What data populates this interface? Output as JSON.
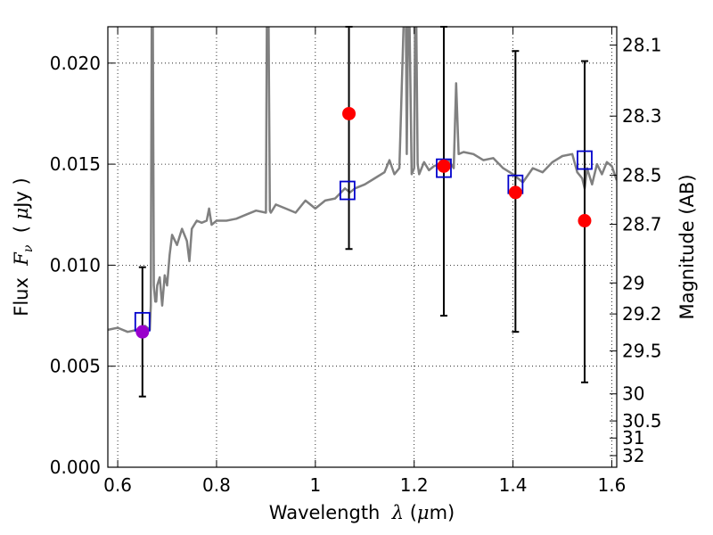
{
  "chart_data": {
    "type": "scatter",
    "xlabel": {
      "prefix": "Wavelength  ",
      "symbol": "λ",
      "suffix": " (",
      "unit_symbol": "μ",
      "unit_rest": "m)"
    },
    "ylabel": {
      "prefix": "Flux  ",
      "symbol": "F",
      "subscript": "ν",
      "suffix": "  ( ",
      "unit_symbol": "μ",
      "unit_rest": "Jy )"
    },
    "y2label": "Magnitude (AB)",
    "xlim": [
      0.58,
      1.61
    ],
    "ylim": [
      0.0,
      0.0218
    ],
    "xticks": [
      0.6,
      0.8,
      1.0,
      1.2,
      1.4,
      1.6
    ],
    "xtick_labels": [
      "0.6",
      "0.8",
      "1",
      "1.2",
      "1.4",
      "1.6"
    ],
    "yticks": [
      0.0,
      0.005,
      0.01,
      0.015,
      0.02
    ],
    "ytick_labels": [
      "0.000",
      "0.005",
      "0.010",
      "0.015",
      "0.020"
    ],
    "magnitude_ticks": [
      "28.1",
      "28.3",
      "28.5",
      "28.7",
      "29",
      "29.2",
      "29.5",
      "30",
      "30.5",
      "31",
      "32"
    ],
    "grid": true,
    "colors": {
      "spectrum": "#808080",
      "observed": "#ff0000",
      "first_observed": "#9900cc",
      "model": "#0000cc",
      "errorbar": "#000000"
    },
    "series": [
      {
        "marker": "open-square",
        "x": [
          0.65,
          1.065,
          1.26,
          1.405,
          1.545
        ],
        "y": [
          0.0072,
          0.0137,
          0.0148,
          0.014,
          0.0152
        ]
      },
      {
        "marker": "filled-circle",
        "x": [
          0.65,
          1.068,
          1.26,
          1.405,
          1.545
        ],
        "y": [
          0.0067,
          0.0175,
          0.0149,
          0.0136,
          0.0122
        ],
        "yerr_low": [
          0.0035,
          0.0108,
          0.0075,
          0.0067,
          0.0042
        ],
        "yerr_high": [
          0.0099,
          0.0218,
          0.0218,
          0.0206,
          0.0201
        ]
      }
    ],
    "spectrum": {
      "x": [
        0.58,
        0.6,
        0.62,
        0.64,
        0.655,
        0.665,
        0.667,
        0.669,
        0.671,
        0.673,
        0.676,
        0.678,
        0.68,
        0.685,
        0.69,
        0.695,
        0.7,
        0.705,
        0.71,
        0.72,
        0.73,
        0.74,
        0.745,
        0.75,
        0.76,
        0.77,
        0.78,
        0.785,
        0.79,
        0.8,
        0.82,
        0.84,
        0.86,
        0.88,
        0.9,
        0.902,
        0.905,
        0.908,
        0.91,
        0.92,
        0.94,
        0.96,
        0.98,
        1.0,
        1.02,
        1.04,
        1.06,
        1.07,
        1.08,
        1.1,
        1.12,
        1.14,
        1.15,
        1.16,
        1.17,
        1.18,
        1.183,
        1.185,
        1.188,
        1.19,
        1.195,
        1.2,
        1.202,
        1.204,
        1.207,
        1.21,
        1.22,
        1.23,
        1.24,
        1.25,
        1.26,
        1.27,
        1.28,
        1.285,
        1.29,
        1.3,
        1.32,
        1.34,
        1.36,
        1.38,
        1.4,
        1.42,
        1.44,
        1.46,
        1.48,
        1.5,
        1.52,
        1.53,
        1.54,
        1.545,
        1.55,
        1.56,
        1.57,
        1.58,
        1.59,
        1.6,
        1.61
      ],
      "y": [
        0.0068,
        0.0069,
        0.0067,
        0.0068,
        0.007,
        0.0068,
        0.008,
        0.023,
        0.023,
        0.009,
        0.0082,
        0.0082,
        0.009,
        0.0094,
        0.008,
        0.0095,
        0.009,
        0.0105,
        0.0115,
        0.011,
        0.0118,
        0.0112,
        0.0102,
        0.0118,
        0.0122,
        0.0121,
        0.0122,
        0.0128,
        0.012,
        0.0122,
        0.0122,
        0.0123,
        0.0125,
        0.0127,
        0.0126,
        0.023,
        0.023,
        0.0127,
        0.0126,
        0.013,
        0.0128,
        0.0126,
        0.0132,
        0.0128,
        0.0132,
        0.0133,
        0.0138,
        0.0136,
        0.0138,
        0.014,
        0.0143,
        0.0146,
        0.0152,
        0.0145,
        0.0148,
        0.023,
        0.023,
        0.0155,
        0.023,
        0.023,
        0.0145,
        0.0148,
        0.023,
        0.023,
        0.015,
        0.0145,
        0.0151,
        0.0147,
        0.0149,
        0.015,
        0.0149,
        0.0152,
        0.0148,
        0.019,
        0.0155,
        0.0156,
        0.0155,
        0.0152,
        0.0153,
        0.0148,
        0.0145,
        0.0141,
        0.0148,
        0.0146,
        0.0151,
        0.0154,
        0.0155,
        0.0146,
        0.0143,
        0.0138,
        0.0148,
        0.014,
        0.015,
        0.0145,
        0.0151,
        0.0149,
        0.0142
      ]
    }
  }
}
